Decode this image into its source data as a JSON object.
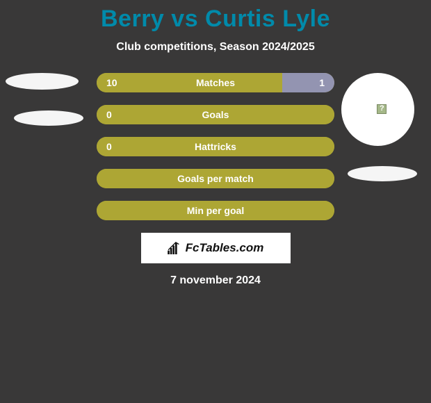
{
  "title": "Berry vs Curtis Lyle",
  "subtitle": "Club competitions, Season 2024/2025",
  "date": "7 november 2024",
  "attribution": "FcTables.com",
  "colors": {
    "background": "#393838",
    "title": "#008aaa",
    "text": "#ffffff",
    "bar_left": "#ada634",
    "bar_right": "#9394b1",
    "avatar": "#f5f5f5"
  },
  "rows": [
    {
      "label": "Matches",
      "left_val": "10",
      "right_val": "1",
      "left_pct": 78,
      "right_pct": 22
    },
    {
      "label": "Goals",
      "left_val": "0",
      "right_val": "",
      "left_pct": 100,
      "right_pct": 0
    },
    {
      "label": "Hattricks",
      "left_val": "0",
      "right_val": "",
      "left_pct": 100,
      "right_pct": 0
    },
    {
      "label": "Goals per match",
      "left_val": "",
      "right_val": "",
      "left_pct": 100,
      "right_pct": 0
    },
    {
      "label": "Min per goal",
      "left_val": "",
      "right_val": "",
      "left_pct": 100,
      "right_pct": 0
    }
  ]
}
